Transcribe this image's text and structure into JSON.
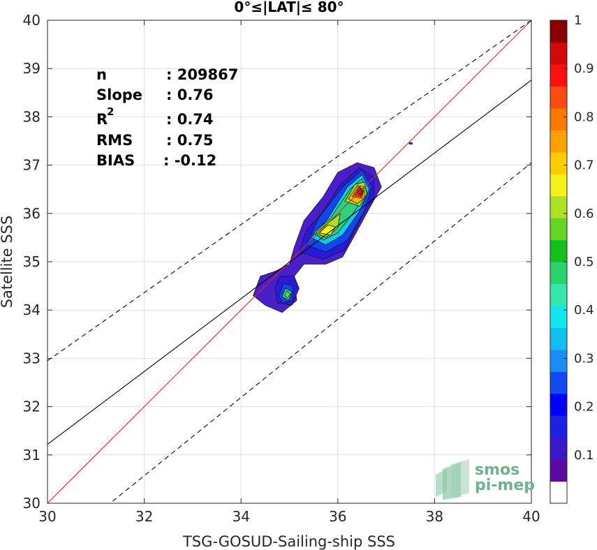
{
  "chart_data": {
    "type": "contour-density-scatter",
    "title": "0°≤|LAT|≤ 80°",
    "xlabel": "TSG-GOSUD-Sailing-ship SSS",
    "ylabel": "Satellite SSS",
    "xlim": [
      30,
      40
    ],
    "ylim": [
      30,
      40
    ],
    "xticks": [
      "30",
      "32",
      "34",
      "36",
      "38",
      "40"
    ],
    "yticks": [
      "30",
      "31",
      "32",
      "33",
      "34",
      "35",
      "36",
      "37",
      "38",
      "39",
      "40"
    ],
    "grid": true,
    "stats": [
      {
        "label": "n",
        "value": ": 209867"
      },
      {
        "label": "Slope",
        "value": ": 0.76"
      },
      {
        "label": "R",
        "sup": "2",
        "value": ": 0.74"
      },
      {
        "label": "RMS",
        "value": ": 0.75"
      },
      {
        "label": "BIAS",
        "value": ": -0.12"
      }
    ],
    "lines": [
      {
        "name": "identity",
        "color": "#e8202a",
        "style": "solid",
        "points": [
          [
            30,
            30
          ],
          [
            40,
            40
          ]
        ]
      },
      {
        "name": "fit",
        "color": "#000000",
        "style": "solid",
        "points": [
          [
            30,
            31.22
          ],
          [
            40,
            38.76
          ]
        ]
      },
      {
        "name": "upper",
        "color": "#000000",
        "style": "dashed",
        "points": [
          [
            30,
            32.95
          ],
          [
            40,
            40
          ]
        ]
      },
      {
        "name": "lower",
        "color": "#000000",
        "style": "dashed",
        "points": [
          [
            30,
            28.95
          ],
          [
            40,
            37.05
          ]
        ]
      }
    ],
    "contours": [
      {
        "level": 0.05,
        "color": "#4a1ec8",
        "points": [
          [
            34.25,
            34.3
          ],
          [
            34.4,
            34.7
          ],
          [
            34.7,
            34.8
          ],
          [
            35.0,
            34.95
          ],
          [
            35.1,
            35.3
          ],
          [
            35.3,
            35.85
          ],
          [
            35.7,
            36.35
          ],
          [
            36.0,
            36.85
          ],
          [
            36.4,
            37.05
          ],
          [
            36.75,
            36.95
          ],
          [
            36.9,
            36.55
          ],
          [
            36.65,
            36.1
          ],
          [
            36.35,
            35.55
          ],
          [
            36.1,
            35.1
          ],
          [
            35.75,
            34.95
          ],
          [
            35.3,
            34.95
          ],
          [
            35.1,
            34.7
          ],
          [
            35.15,
            34.2
          ],
          [
            34.85,
            33.95
          ],
          [
            34.5,
            34.1
          ]
        ]
      },
      {
        "level": 0.1,
        "color": "#2a19d8",
        "points": [
          [
            34.7,
            34.45
          ],
          [
            34.8,
            34.7
          ],
          [
            35.1,
            34.7
          ],
          [
            35.2,
            34.45
          ],
          [
            35.05,
            34.1
          ],
          [
            34.75,
            34.15
          ]
        ]
      },
      {
        "level": 0.1,
        "color": "#2a19d8",
        "points": [
          [
            35.2,
            35.2
          ],
          [
            35.35,
            35.65
          ],
          [
            35.7,
            36.05
          ],
          [
            36.05,
            36.6
          ],
          [
            36.45,
            36.95
          ],
          [
            36.75,
            36.75
          ],
          [
            36.75,
            36.35
          ],
          [
            36.45,
            35.85
          ],
          [
            36.15,
            35.25
          ],
          [
            35.7,
            35.05
          ]
        ]
      },
      {
        "level": 0.2,
        "color": "#1046f2",
        "points": [
          [
            35.35,
            35.35
          ],
          [
            35.6,
            35.9
          ],
          [
            36.1,
            36.55
          ],
          [
            36.5,
            36.9
          ],
          [
            36.7,
            36.55
          ],
          [
            36.55,
            36.05
          ],
          [
            36.2,
            35.45
          ],
          [
            35.75,
            35.2
          ]
        ]
      },
      {
        "level": 0.2,
        "color": "#1046f2",
        "points": [
          [
            34.78,
            34.3
          ],
          [
            34.88,
            34.55
          ],
          [
            35.08,
            34.5
          ],
          [
            35.05,
            34.2
          ],
          [
            34.85,
            34.15
          ]
        ]
      },
      {
        "level": 0.35,
        "color": "#0ecde8",
        "points": [
          [
            35.45,
            35.5
          ],
          [
            35.8,
            35.9
          ],
          [
            36.2,
            36.55
          ],
          [
            36.5,
            36.8
          ],
          [
            36.65,
            36.5
          ],
          [
            36.45,
            36.05
          ],
          [
            36.1,
            35.55
          ],
          [
            35.75,
            35.35
          ]
        ]
      },
      {
        "level": 0.4,
        "color": "#30dca0",
        "points": [
          [
            34.85,
            34.28
          ],
          [
            34.92,
            34.45
          ],
          [
            35.05,
            34.38
          ],
          [
            34.98,
            34.2
          ]
        ]
      },
      {
        "level": 0.45,
        "color": "#2ed27a",
        "points": [
          [
            35.5,
            35.6
          ],
          [
            35.85,
            35.9
          ],
          [
            36.25,
            36.5
          ],
          [
            36.5,
            36.72
          ],
          [
            36.6,
            36.45
          ],
          [
            36.35,
            36.05
          ],
          [
            36.0,
            35.6
          ],
          [
            35.7,
            35.45
          ]
        ]
      },
      {
        "level": 0.55,
        "color": "#5de04a",
        "points": [
          [
            34.9,
            34.3
          ],
          [
            34.95,
            34.4
          ],
          [
            35.02,
            34.33
          ],
          [
            34.96,
            34.25
          ]
        ]
      },
      {
        "level": 0.6,
        "color": "#a6e02a",
        "points": [
          [
            35.55,
            35.6
          ],
          [
            35.8,
            35.8
          ],
          [
            36.05,
            36.0
          ],
          [
            36.0,
            35.7
          ],
          [
            35.75,
            35.5
          ]
        ]
      },
      {
        "level": 0.6,
        "color": "#a6e02a",
        "points": [
          [
            36.15,
            36.25
          ],
          [
            36.35,
            36.6
          ],
          [
            36.55,
            36.65
          ],
          [
            36.6,
            36.4
          ],
          [
            36.45,
            36.15
          ]
        ]
      },
      {
        "level": 0.65,
        "color": "#f6f21e",
        "points": [
          [
            35.62,
            35.6
          ],
          [
            35.8,
            35.76
          ],
          [
            35.95,
            35.72
          ],
          [
            35.85,
            35.55
          ]
        ]
      },
      {
        "level": 0.7,
        "color": "#ffb400",
        "points": [
          [
            36.22,
            36.3
          ],
          [
            36.4,
            36.58
          ],
          [
            36.55,
            36.55
          ],
          [
            36.55,
            36.32
          ],
          [
            36.4,
            36.2
          ]
        ]
      },
      {
        "level": 0.75,
        "color": "#ff8200",
        "points": [
          [
            36.3,
            36.35
          ],
          [
            36.42,
            36.55
          ],
          [
            36.53,
            36.5
          ],
          [
            36.5,
            36.32
          ]
        ]
      },
      {
        "level": 0.85,
        "color": "#ff3c10",
        "points": [
          [
            36.35,
            36.38
          ],
          [
            36.45,
            36.55
          ],
          [
            36.53,
            36.45
          ],
          [
            36.48,
            36.35
          ]
        ]
      },
      {
        "level": 0.95,
        "color": "#cc0a0a",
        "points": [
          [
            36.4,
            36.42
          ],
          [
            36.47,
            36.52
          ],
          [
            36.52,
            36.45
          ],
          [
            36.47,
            36.38
          ]
        ]
      }
    ],
    "outlier_marks": [
      {
        "x": 37.5,
        "y": 37.45,
        "color": "#1a1aa8"
      }
    ],
    "colorbar": {
      "range": [
        0,
        1
      ],
      "tick_labels": [
        "0.1",
        "0.2",
        "0.3",
        "0.4",
        "0.5",
        "0.6",
        "0.7",
        "0.8",
        "0.9",
        "1"
      ],
      "tick_values": [
        0.1,
        0.2,
        0.3,
        0.4,
        0.5,
        0.6,
        0.7,
        0.8,
        0.9,
        1
      ],
      "colors": [
        "#ffffff",
        "#5b0aa0",
        "#3a18c8",
        "#2020e0",
        "#0000ff",
        "#1448f0",
        "#1a8ef4",
        "#12bdf2",
        "#14e6f0",
        "#34e6a8",
        "#2ad26e",
        "#14c020",
        "#68d424",
        "#aee024",
        "#f4f21c",
        "#ffcc00",
        "#ffa000",
        "#ff7800",
        "#ff4c14",
        "#ff1010",
        "#d00a0a",
        "#8a0000"
      ]
    }
  },
  "logo": {
    "line1": "smos",
    "line2": "pi-mep"
  }
}
